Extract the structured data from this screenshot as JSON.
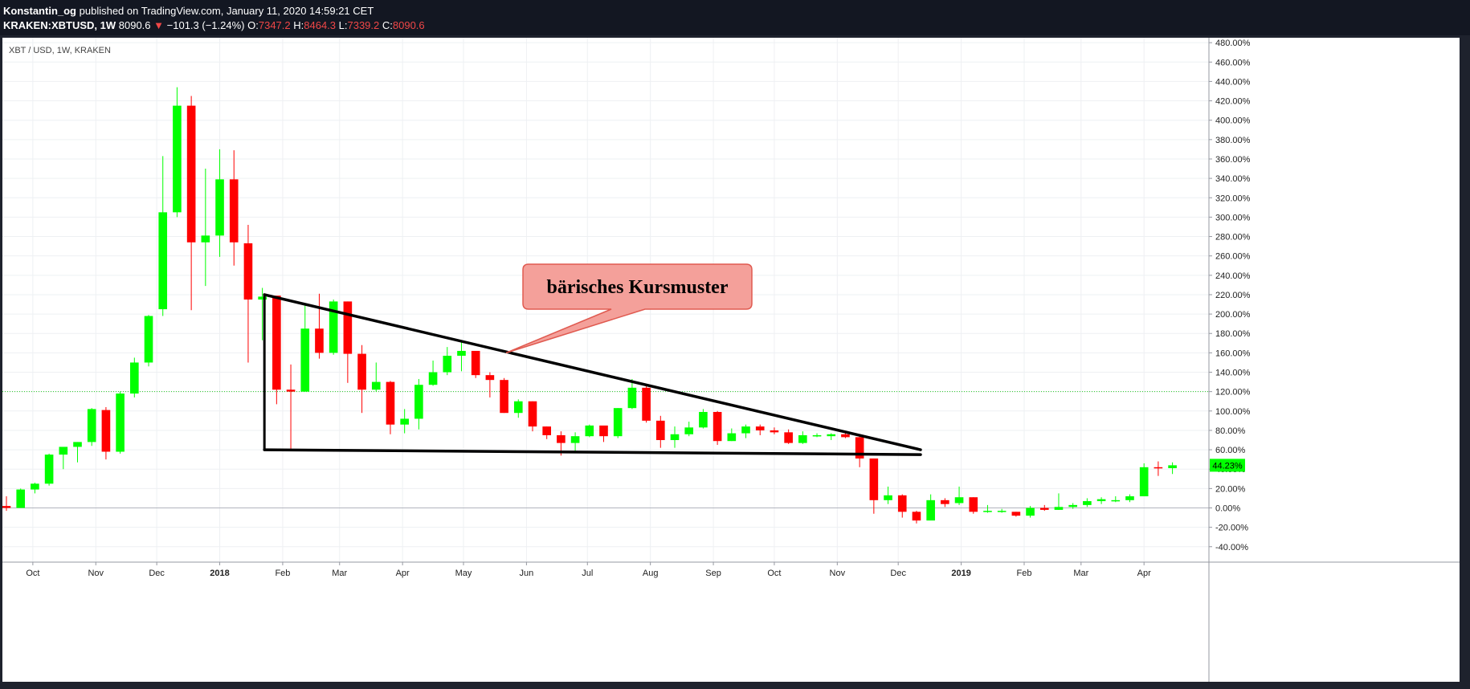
{
  "header": {
    "author": "Konstantin_og",
    "published_text": "published on TradingView.com, January 11, 2020 14:59:21 CET",
    "symbol": "KRAKEN:XBTUSD, 1W",
    "last_price": "8090.6",
    "change_arrow": "▼",
    "change": "−101.3 (−1.24%)",
    "o_label": "O:",
    "o_value": "7347.2",
    "h_label": "H:",
    "h_value": "8464.3",
    "l_label": "L:",
    "l_value": "7339.2",
    "c_label": "C:",
    "c_value": "8090.6"
  },
  "colors": {
    "up": "#00ff00",
    "down": "#ff0000",
    "background": "#ffffff",
    "callout_fill": "#f4a09a",
    "callout_stroke": "#e05a50",
    "dotted_line": "#22cc22",
    "current_value_badge": "#00ff00"
  },
  "chart_data": {
    "type": "candlestick",
    "title": "XBT / USD, 1W, KRAKEN",
    "y_axis_unit": "percent",
    "y_ticks": [
      -40,
      -20,
      0,
      20,
      40,
      60,
      80,
      100,
      120,
      140,
      160,
      180,
      200,
      220,
      240,
      260,
      280,
      300,
      320,
      340,
      360,
      380,
      400,
      420,
      440,
      460,
      480
    ],
    "y_tick_labels": [
      "-40.00%",
      "-20.00%",
      "0.00%",
      "20.00%",
      "40.00%",
      "60.00%",
      "80.00%",
      "100.00%",
      "120.00%",
      "140.00%",
      "160.00%",
      "180.00%",
      "200.00%",
      "220.00%",
      "240.00%",
      "260.00%",
      "280.00%",
      "300.00%",
      "320.00%",
      "340.00%",
      "360.00%",
      "380.00%",
      "400.00%",
      "420.00%",
      "440.00%",
      "460.00%",
      "480.00%"
    ],
    "ylim": [
      -60,
      490
    ],
    "x_start": "2017-09-18",
    "x_end": "2019-04-29",
    "x_ticks": [
      {
        "date": "2017-10-01",
        "label": "Oct"
      },
      {
        "date": "2017-11-01",
        "label": "Nov"
      },
      {
        "date": "2017-12-01",
        "label": "Dec"
      },
      {
        "date": "2018-01-01",
        "label": "2018"
      },
      {
        "date": "2018-02-01",
        "label": "Feb"
      },
      {
        "date": "2018-03-01",
        "label": "Mar"
      },
      {
        "date": "2018-04-01",
        "label": "Apr"
      },
      {
        "date": "2018-05-01",
        "label": "May"
      },
      {
        "date": "2018-06-01",
        "label": "Jun"
      },
      {
        "date": "2018-07-01",
        "label": "Jul"
      },
      {
        "date": "2018-08-01",
        "label": "Aug"
      },
      {
        "date": "2018-09-01",
        "label": "Sep"
      },
      {
        "date": "2018-10-01",
        "label": "Oct"
      },
      {
        "date": "2018-11-01",
        "label": "Nov"
      },
      {
        "date": "2018-12-01",
        "label": "Dec"
      },
      {
        "date": "2019-01-01",
        "label": "2019"
      },
      {
        "date": "2019-02-01",
        "label": "Feb"
      },
      {
        "date": "2019-03-01",
        "label": "Mar"
      },
      {
        "date": "2019-04-01",
        "label": "Apr"
      }
    ],
    "candles": [
      {
        "date": "2017-09-18",
        "o": 2,
        "h": 12,
        "l": -3,
        "c": 0
      },
      {
        "date": "2017-09-25",
        "o": 0,
        "h": 20,
        "l": 0,
        "c": 19
      },
      {
        "date": "2017-10-02",
        "o": 19,
        "h": 26,
        "l": 15,
        "c": 25
      },
      {
        "date": "2017-10-09",
        "o": 25,
        "h": 56,
        "l": 23,
        "c": 55
      },
      {
        "date": "2017-10-16",
        "o": 55,
        "h": 61,
        "l": 40,
        "c": 63
      },
      {
        "date": "2017-10-23",
        "o": 63,
        "h": 68,
        "l": 47,
        "c": 68
      },
      {
        "date": "2017-10-30",
        "o": 68,
        "h": 103,
        "l": 64,
        "c": 102
      },
      {
        "date": "2017-11-06",
        "o": 101,
        "h": 104,
        "l": 50,
        "c": 58
      },
      {
        "date": "2017-11-13",
        "o": 58,
        "h": 120,
        "l": 56,
        "c": 118
      },
      {
        "date": "2017-11-20",
        "o": 118,
        "h": 155,
        "l": 114,
        "c": 150
      },
      {
        "date": "2017-11-27",
        "o": 150,
        "h": 199,
        "l": 146,
        "c": 198
      },
      {
        "date": "2017-12-04",
        "o": 205,
        "h": 363,
        "l": 198,
        "c": 305
      },
      {
        "date": "2017-12-11",
        "o": 305,
        "h": 434,
        "l": 300,
        "c": 415
      },
      {
        "date": "2017-12-18",
        "o": 415,
        "h": 425,
        "l": 204,
        "c": 274
      },
      {
        "date": "2017-12-25",
        "o": 274,
        "h": 350,
        "l": 229,
        "c": 281
      },
      {
        "date": "2018-01-01",
        "o": 281,
        "h": 370,
        "l": 259,
        "c": 339
      },
      {
        "date": "2018-01-08",
        "o": 339,
        "h": 369,
        "l": 250,
        "c": 274
      },
      {
        "date": "2018-01-15",
        "o": 273,
        "h": 292,
        "l": 150,
        "c": 215
      },
      {
        "date": "2018-01-22",
        "o": 215,
        "h": 227,
        "l": 173,
        "c": 218
      },
      {
        "date": "2018-01-29",
        "o": 219,
        "h": 218,
        "l": 107,
        "c": 122
      },
      {
        "date": "2018-02-05",
        "o": 122,
        "h": 148,
        "l": 61,
        "c": 120
      },
      {
        "date": "2018-02-12",
        "o": 120,
        "h": 209,
        "l": 120,
        "c": 185
      },
      {
        "date": "2018-02-19",
        "o": 185,
        "h": 221,
        "l": 154,
        "c": 160
      },
      {
        "date": "2018-02-26",
        "o": 160,
        "h": 215,
        "l": 158,
        "c": 213
      },
      {
        "date": "2018-03-05",
        "o": 213,
        "h": 213,
        "l": 129,
        "c": 159
      },
      {
        "date": "2018-03-12",
        "o": 159,
        "h": 168,
        "l": 98,
        "c": 122
      },
      {
        "date": "2018-03-19",
        "o": 122,
        "h": 150,
        "l": 120,
        "c": 130
      },
      {
        "date": "2018-03-26",
        "o": 130,
        "h": 131,
        "l": 76,
        "c": 86
      },
      {
        "date": "2018-04-02",
        "o": 86,
        "h": 102,
        "l": 77,
        "c": 92
      },
      {
        "date": "2018-04-09",
        "o": 92,
        "h": 133,
        "l": 81,
        "c": 127
      },
      {
        "date": "2018-04-16",
        "o": 127,
        "h": 152,
        "l": 126,
        "c": 140
      },
      {
        "date": "2018-04-23",
        "o": 140,
        "h": 166,
        "l": 137,
        "c": 157
      },
      {
        "date": "2018-04-30",
        "o": 157,
        "h": 171,
        "l": 141,
        "c": 162
      },
      {
        "date": "2018-05-07",
        "o": 162,
        "h": 160,
        "l": 134,
        "c": 137
      },
      {
        "date": "2018-05-14",
        "o": 137,
        "h": 140,
        "l": 114,
        "c": 132
      },
      {
        "date": "2018-05-21",
        "o": 132,
        "h": 134,
        "l": 98,
        "c": 98
      },
      {
        "date": "2018-05-28",
        "o": 98,
        "h": 112,
        "l": 93,
        "c": 110
      },
      {
        "date": "2018-06-04",
        "o": 110,
        "h": 110,
        "l": 79,
        "c": 84
      },
      {
        "date": "2018-06-11",
        "o": 84,
        "h": 84,
        "l": 71,
        "c": 75
      },
      {
        "date": "2018-06-18",
        "o": 75,
        "h": 79,
        "l": 54,
        "c": 67
      },
      {
        "date": "2018-06-25",
        "o": 67,
        "h": 78,
        "l": 58,
        "c": 74
      },
      {
        "date": "2018-07-02",
        "o": 74,
        "h": 86,
        "l": 73,
        "c": 85
      },
      {
        "date": "2018-07-09",
        "o": 85,
        "h": 84,
        "l": 68,
        "c": 74
      },
      {
        "date": "2018-07-16",
        "o": 74,
        "h": 103,
        "l": 72,
        "c": 103
      },
      {
        "date": "2018-07-23",
        "o": 103,
        "h": 133,
        "l": 102,
        "c": 124
      },
      {
        "date": "2018-07-30",
        "o": 124,
        "h": 126,
        "l": 88,
        "c": 90
      },
      {
        "date": "2018-08-06",
        "o": 90,
        "h": 95,
        "l": 62,
        "c": 70
      },
      {
        "date": "2018-08-13",
        "o": 70,
        "h": 84,
        "l": 62,
        "c": 76
      },
      {
        "date": "2018-08-20",
        "o": 76,
        "h": 89,
        "l": 74,
        "c": 83
      },
      {
        "date": "2018-08-27",
        "o": 83,
        "h": 102,
        "l": 82,
        "c": 99
      },
      {
        "date": "2018-09-03",
        "o": 99,
        "h": 100,
        "l": 65,
        "c": 69
      },
      {
        "date": "2018-09-10",
        "o": 69,
        "h": 82,
        "l": 69,
        "c": 77
      },
      {
        "date": "2018-09-17",
        "o": 77,
        "h": 86,
        "l": 72,
        "c": 84
      },
      {
        "date": "2018-09-24",
        "o": 84,
        "h": 86,
        "l": 75,
        "c": 80
      },
      {
        "date": "2018-10-01",
        "o": 80,
        "h": 83,
        "l": 76,
        "c": 78
      },
      {
        "date": "2018-10-08",
        "o": 78,
        "h": 81,
        "l": 66,
        "c": 67
      },
      {
        "date": "2018-10-15",
        "o": 67,
        "h": 79,
        "l": 66,
        "c": 75
      },
      {
        "date": "2018-10-22",
        "o": 75,
        "h": 77,
        "l": 73,
        "c": 75
      },
      {
        "date": "2018-10-29",
        "o": 74,
        "h": 77,
        "l": 70,
        "c": 76
      },
      {
        "date": "2018-11-05",
        "o": 76,
        "h": 78,
        "l": 72,
        "c": 73
      },
      {
        "date": "2018-11-12",
        "o": 73,
        "h": 76,
        "l": 42,
        "c": 51
      },
      {
        "date": "2018-11-19",
        "o": 51,
        "h": 51,
        "l": -6,
        "c": 8
      },
      {
        "date": "2018-11-26",
        "o": 8,
        "h": 22,
        "l": 4,
        "c": 13
      },
      {
        "date": "2018-12-03",
        "o": 13,
        "h": 14,
        "l": -10,
        "c": -4
      },
      {
        "date": "2018-12-10",
        "o": -4,
        "h": -3,
        "l": -16,
        "c": -13
      },
      {
        "date": "2018-12-17",
        "o": -13,
        "h": 14,
        "l": -12,
        "c": 8
      },
      {
        "date": "2018-12-24",
        "o": 8,
        "h": 10,
        "l": 1,
        "c": 4
      },
      {
        "date": "2018-12-31",
        "o": 5,
        "h": 22,
        "l": 3,
        "c": 11
      },
      {
        "date": "2019-01-07",
        "o": 11,
        "h": 11,
        "l": -6,
        "c": -4
      },
      {
        "date": "2019-01-14",
        "o": -4,
        "h": 3,
        "l": -5,
        "c": -3
      },
      {
        "date": "2019-01-21",
        "o": -3,
        "h": -1,
        "l": -5,
        "c": -3
      },
      {
        "date": "2019-01-28",
        "o": -4,
        "h": -4,
        "l": -9,
        "c": -8
      },
      {
        "date": "2019-02-04",
        "o": -8,
        "h": 2,
        "l": -10,
        "c": 0
      },
      {
        "date": "2019-02-11",
        "o": 0,
        "h": 3,
        "l": -3,
        "c": -2
      },
      {
        "date": "2019-02-18",
        "o": -2,
        "h": 15,
        "l": -2,
        "c": 1
      },
      {
        "date": "2019-02-25",
        "o": 1,
        "h": 5,
        "l": -1,
        "c": 3
      },
      {
        "date": "2019-03-04",
        "o": 3,
        "h": 10,
        "l": 1,
        "c": 7
      },
      {
        "date": "2019-03-11",
        "o": 7,
        "h": 11,
        "l": 4,
        "c": 9
      },
      {
        "date": "2019-03-18",
        "o": 8,
        "h": 12,
        "l": 6,
        "c": 8
      },
      {
        "date": "2019-03-25",
        "o": 8,
        "h": 14,
        "l": 6,
        "c": 12
      },
      {
        "date": "2019-04-01",
        "o": 12,
        "h": 46,
        "l": 12,
        "c": 42
      },
      {
        "date": "2019-04-08",
        "o": 42,
        "h": 48,
        "l": 33,
        "c": 41
      },
      {
        "date": "2019-04-15",
        "o": 41,
        "h": 47,
        "l": 35,
        "c": 44
      }
    ],
    "horizontal_lines": [
      {
        "y": 120,
        "style": "dotted"
      },
      {
        "y": 0,
        "style": "solid"
      }
    ],
    "current_value": {
      "y": 44,
      "label": "44.23%"
    },
    "drawings": {
      "descending_triangle": {
        "upper_start": {
          "date": "2018-01-23",
          "y": 220
        },
        "upper_end": {
          "date": "2018-12-12",
          "y": 60
        },
        "lower_start": {
          "date": "2018-01-23",
          "y": 60
        },
        "lower_end": {
          "date": "2018-12-12",
          "y": 55
        }
      },
      "callout": {
        "text": "bärisches Kursmuster",
        "anchor": {
          "date": "2018-05-22",
          "y": 160
        }
      }
    }
  }
}
